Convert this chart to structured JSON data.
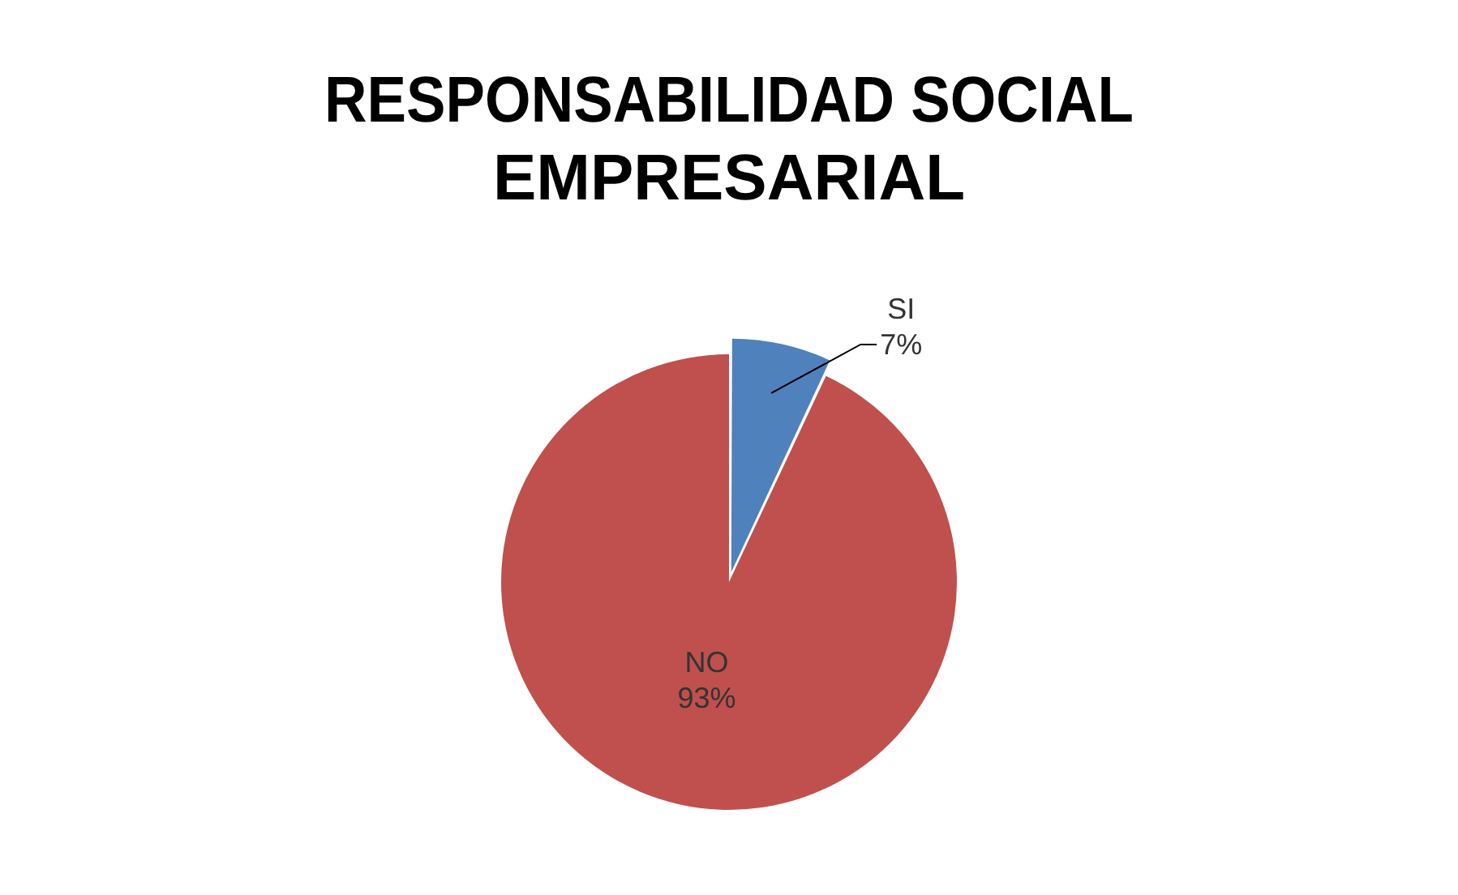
{
  "chart_data": {
    "type": "pie",
    "title": "RESPONSABILIDAD SOCIAL EMPRESARIAL",
    "categories": [
      "SI",
      "NO"
    ],
    "values": [
      7,
      93
    ],
    "value_labels": [
      "7%",
      "93%"
    ],
    "colors": [
      "#4f81bd",
      "#c0504d"
    ],
    "legend": false
  }
}
